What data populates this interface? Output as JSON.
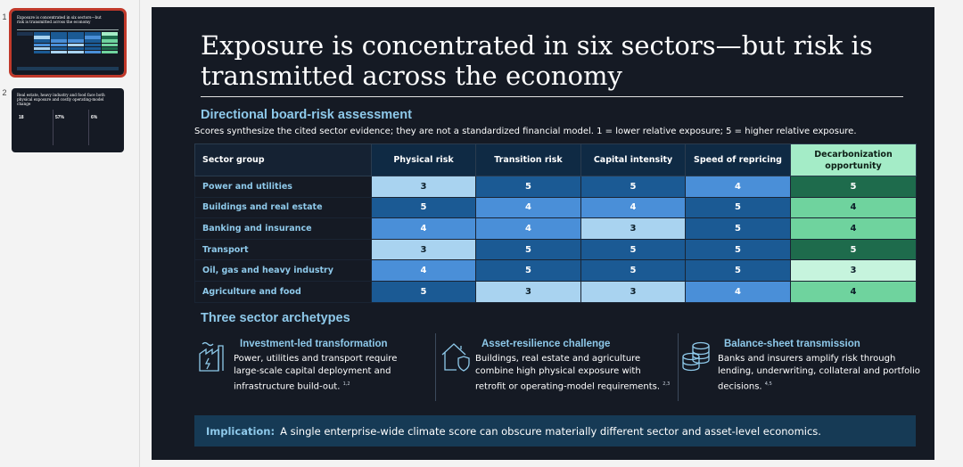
{
  "thumbnails": [
    {
      "num": "1",
      "title": "Exposure is concentrated in six sectors—but risk is transmitted across the economy"
    },
    {
      "num": "2",
      "title": "Real estate, heavy industry and food face both physical exposure and costly operating-model change",
      "stats": [
        "18",
        "57%",
        "6%"
      ]
    }
  ],
  "slide": {
    "title": "Exposure is concentrated in six sectors—but risk is transmitted across the economy",
    "section1": "Directional board-risk assessment",
    "subtitle": "Scores synthesize the cited sector evidence; they are not a standardized financial model. 1 = lower relative exposure; 5 = higher relative exposure.",
    "table": {
      "headers": [
        "Sector group",
        "Physical risk",
        "Transition risk",
        "Capital intensity",
        "Speed of repricing",
        "Decarbonization opportunity"
      ],
      "rows": [
        {
          "label": "Power and utilities",
          "values": [
            "3",
            "5",
            "5",
            "4",
            "5"
          ]
        },
        {
          "label": "Buildings and real estate",
          "values": [
            "5",
            "4",
            "4",
            "5",
            "4"
          ]
        },
        {
          "label": "Banking and insurance",
          "values": [
            "4",
            "4",
            "3",
            "5",
            "4"
          ]
        },
        {
          "label": "Transport",
          "values": [
            "3",
            "5",
            "5",
            "5",
            "5"
          ]
        },
        {
          "label": "Oil, gas and heavy industry",
          "values": [
            "4",
            "5",
            "5",
            "5",
            "3"
          ]
        },
        {
          "label": "Agriculture and food",
          "values": [
            "5",
            "3",
            "3",
            "4",
            "4"
          ]
        }
      ],
      "risk_colors": {
        "3": "#a9d3f0",
        "4": "#4a8fd8",
        "5": "#1b5a94"
      },
      "opportunity_colors": {
        "3": "#c6f4dd",
        "4": "#6fd39e",
        "5": "#1e6b4c"
      }
    },
    "section2": "Three sector archetypes",
    "archetypes": [
      {
        "icon": "factory-icon",
        "title": "Investment-led transformation",
        "text": "Power, utilities and transport require large-scale capital deployment and infrastructure build-out.",
        "refs": "1,2"
      },
      {
        "icon": "house-shield-icon",
        "title": "Asset-resilience challenge",
        "text": "Buildings, real estate and agriculture combine high physical exposure with retrofit or operating-model requirements.",
        "refs": "2,3"
      },
      {
        "icon": "coin-stack-icon",
        "title": "Balance-sheet transmission",
        "text": "Banks and insurers amplify risk through lending, underwriting, collateral and portfolio decisions.",
        "refs": "4,5"
      }
    ],
    "implication": {
      "label": "Implication:",
      "text": "A single enterprise-wide climate score can obscure materially different sector and asset-level economics."
    }
  }
}
